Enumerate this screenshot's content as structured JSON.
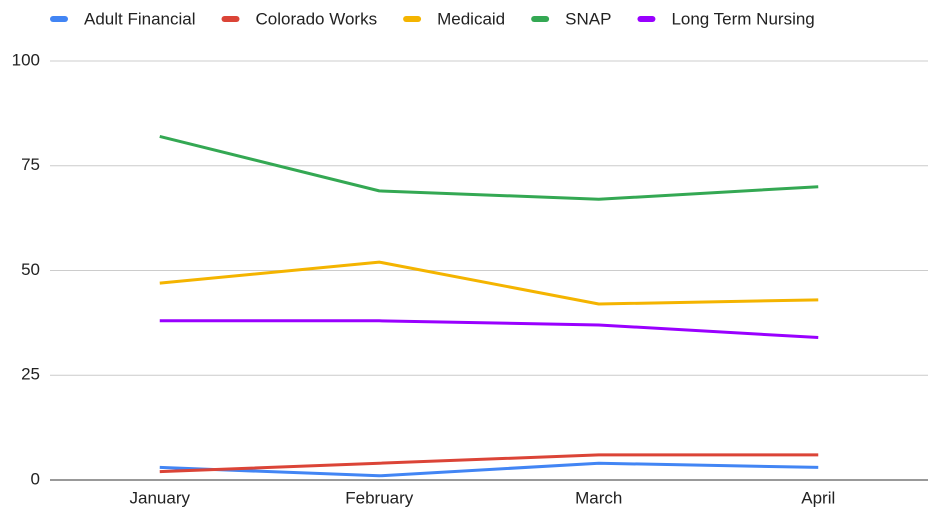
{
  "chart_data": {
    "type": "line",
    "categories": [
      "January",
      "February",
      "March",
      "April"
    ],
    "series": [
      {
        "name": "Adult Financial",
        "color": "#4285f4",
        "values": [
          3,
          1,
          4,
          3
        ]
      },
      {
        "name": "Colorado Works",
        "color": "#db4437",
        "values": [
          2,
          4,
          6,
          6
        ]
      },
      {
        "name": "Medicaid",
        "color": "#f4b400",
        "values": [
          47,
          52,
          42,
          43
        ]
      },
      {
        "name": "SNAP",
        "color": "#34a853",
        "values": [
          82,
          69,
          67,
          70
        ]
      },
      {
        "name": "Long Term Nursing",
        "color": "#9900ff",
        "values": [
          38,
          38,
          37,
          34
        ]
      }
    ],
    "ylim": [
      0,
      100
    ],
    "yticks": [
      0,
      25,
      50,
      75,
      100
    ],
    "grid": true,
    "legend": "top"
  }
}
